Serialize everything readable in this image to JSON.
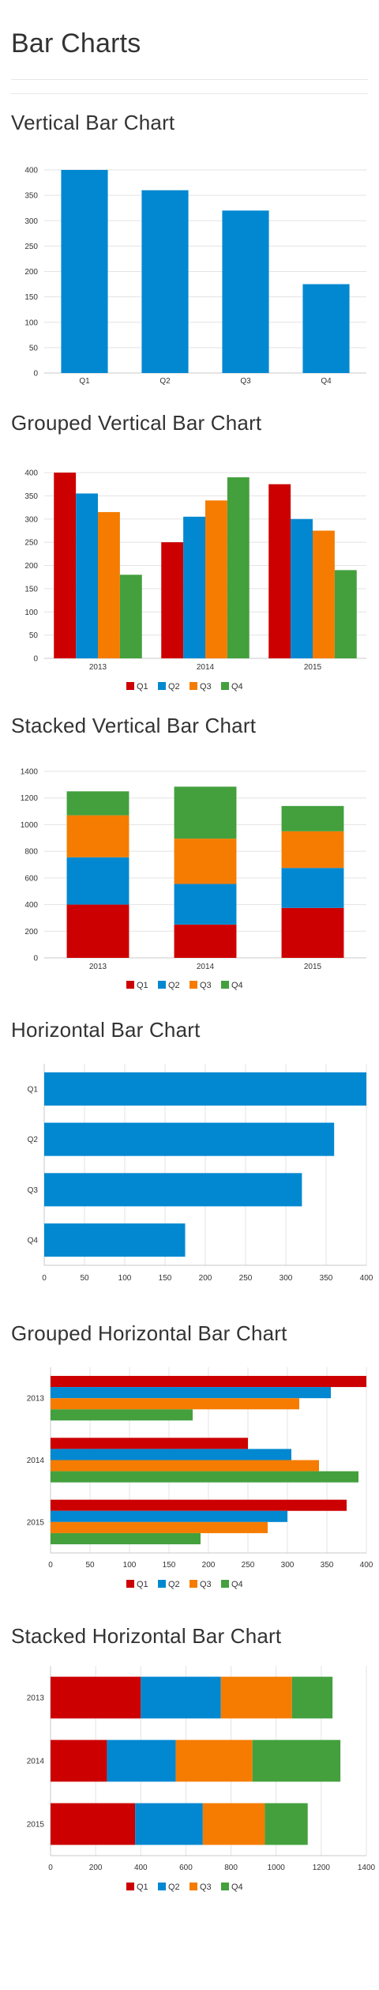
{
  "page": {
    "title": "Bar Charts"
  },
  "charts": [
    {
      "title": "Vertical Bar Chart",
      "chart_data": {
        "type": "bar",
        "orientation": "vertical",
        "mode": "single",
        "categories": [
          "Q1",
          "Q2",
          "Q3",
          "Q4"
        ],
        "series": [
          {
            "values": [
              400,
              360,
              320,
              175
            ],
            "color": "#0288D1"
          }
        ],
        "ylim": [
          0,
          400
        ],
        "ticks": [
          0,
          50,
          100,
          150,
          200,
          250,
          300,
          350,
          400
        ],
        "grid": true,
        "legend": false
      }
    },
    {
      "title": "Grouped Vertical Bar Chart",
      "chart_data": {
        "type": "bar",
        "orientation": "vertical",
        "mode": "grouped",
        "categories": [
          "2013",
          "2014",
          "2015"
        ],
        "series": [
          {
            "name": "Q1",
            "values": [
              400,
              250,
              375
            ],
            "color": "#CC0000"
          },
          {
            "name": "Q2",
            "values": [
              355,
              305,
              300
            ],
            "color": "#0288D1"
          },
          {
            "name": "Q3",
            "values": [
              315,
              340,
              275
            ],
            "color": "#F57C00"
          },
          {
            "name": "Q4",
            "values": [
              180,
              390,
              190
            ],
            "color": "#43A03D"
          }
        ],
        "ylim": [
          0,
          400
        ],
        "ticks": [
          0,
          50,
          100,
          150,
          200,
          250,
          300,
          350,
          400
        ],
        "grid": true,
        "legend": "bottom-center"
      }
    },
    {
      "title": "Stacked Vertical Bar Chart",
      "chart_data": {
        "type": "bar",
        "orientation": "vertical",
        "mode": "stacked",
        "categories": [
          "2013",
          "2014",
          "2015"
        ],
        "series": [
          {
            "name": "Q1",
            "values": [
              400,
              250,
              375
            ],
            "color": "#CC0000"
          },
          {
            "name": "Q2",
            "values": [
              355,
              305,
              300
            ],
            "color": "#0288D1"
          },
          {
            "name": "Q3",
            "values": [
              315,
              340,
              275
            ],
            "color": "#F57C00"
          },
          {
            "name": "Q4",
            "values": [
              180,
              390,
              190
            ],
            "color": "#43A03D"
          }
        ],
        "ylim": [
          0,
          1400
        ],
        "ticks": [
          0,
          200,
          400,
          600,
          800,
          1000,
          1200,
          1400
        ],
        "grid": true,
        "legend": "bottom-center"
      }
    },
    {
      "title": "Horizontal Bar Chart",
      "chart_data": {
        "type": "bar",
        "orientation": "horizontal",
        "mode": "single",
        "categories": [
          "Q1",
          "Q2",
          "Q3",
          "Q4"
        ],
        "series": [
          {
            "values": [
              400,
              360,
              320,
              175
            ],
            "color": "#0288D1"
          }
        ],
        "xlim": [
          0,
          400
        ],
        "ticks": [
          0,
          50,
          100,
          150,
          200,
          250,
          300,
          350,
          400
        ],
        "grid": true,
        "legend": false
      }
    },
    {
      "title": "Grouped Horizontal Bar Chart",
      "chart_data": {
        "type": "bar",
        "orientation": "horizontal",
        "mode": "grouped",
        "categories": [
          "2013",
          "2014",
          "2015"
        ],
        "series": [
          {
            "name": "Q1",
            "values": [
              400,
              250,
              375
            ],
            "color": "#CC0000"
          },
          {
            "name": "Q2",
            "values": [
              355,
              305,
              300
            ],
            "color": "#0288D1"
          },
          {
            "name": "Q3",
            "values": [
              315,
              340,
              275
            ],
            "color": "#F57C00"
          },
          {
            "name": "Q4",
            "values": [
              180,
              390,
              190
            ],
            "color": "#43A03D"
          }
        ],
        "xlim": [
          0,
          400
        ],
        "ticks": [
          0,
          50,
          100,
          150,
          200,
          250,
          300,
          350,
          400
        ],
        "grid": true,
        "legend": "bottom-center"
      }
    },
    {
      "title": "Stacked Horizontal Bar Chart",
      "chart_data": {
        "type": "bar",
        "orientation": "horizontal",
        "mode": "stacked",
        "categories": [
          "2013",
          "2014",
          "2015"
        ],
        "series": [
          {
            "name": "Q1",
            "values": [
              400,
              250,
              375
            ],
            "color": "#CC0000"
          },
          {
            "name": "Q2",
            "values": [
              355,
              305,
              300
            ],
            "color": "#0288D1"
          },
          {
            "name": "Q3",
            "values": [
              315,
              340,
              275
            ],
            "color": "#F57C00"
          },
          {
            "name": "Q4",
            "values": [
              180,
              390,
              190
            ],
            "color": "#43A03D"
          }
        ],
        "xlim": [
          0,
          1400
        ],
        "ticks": [
          0,
          200,
          400,
          600,
          800,
          1000,
          1200,
          1400
        ],
        "grid": true,
        "legend": "bottom-center"
      }
    }
  ]
}
